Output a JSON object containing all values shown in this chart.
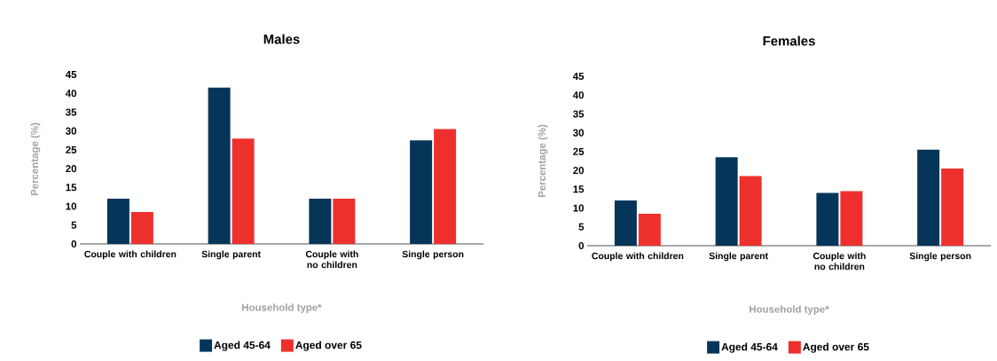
{
  "chart_data": [
    {
      "type": "bar",
      "title": "Males",
      "xlabel": "Household type*",
      "ylabel": "Percentage (%)",
      "categories": [
        "Couple with children",
        "Single parent",
        "Couple with no children",
        "Single person"
      ],
      "series": [
        {
          "name": "Aged 45-64",
          "color": "#06355a",
          "values": [
            12,
            41.5,
            12,
            27.5
          ]
        },
        {
          "name": "Aged over 65",
          "color": "#ee302d",
          "values": [
            8.5,
            28,
            12,
            30.5
          ]
        }
      ],
      "ylim": [
        0,
        45
      ],
      "yticks": [
        0,
        5,
        10,
        15,
        20,
        25,
        30,
        35,
        40,
        45
      ],
      "legend": "bottom"
    },
    {
      "type": "bar",
      "title": "Females",
      "xlabel": "Household type*",
      "ylabel": "Percentage (%)",
      "categories": [
        "Couple with children",
        "Single parent",
        "Couple with no children",
        "Single person"
      ],
      "series": [
        {
          "name": "Aged 45-64",
          "color": "#06355a",
          "values": [
            12,
            23.5,
            14,
            25.5
          ]
        },
        {
          "name": "Aged over 65",
          "color": "#ee302d",
          "values": [
            8.5,
            18.5,
            14.5,
            20.5
          ]
        }
      ],
      "ylim": [
        0,
        45
      ],
      "yticks": [
        0,
        5,
        10,
        15,
        20,
        25,
        30,
        35,
        40,
        45
      ],
      "legend": "bottom"
    }
  ]
}
